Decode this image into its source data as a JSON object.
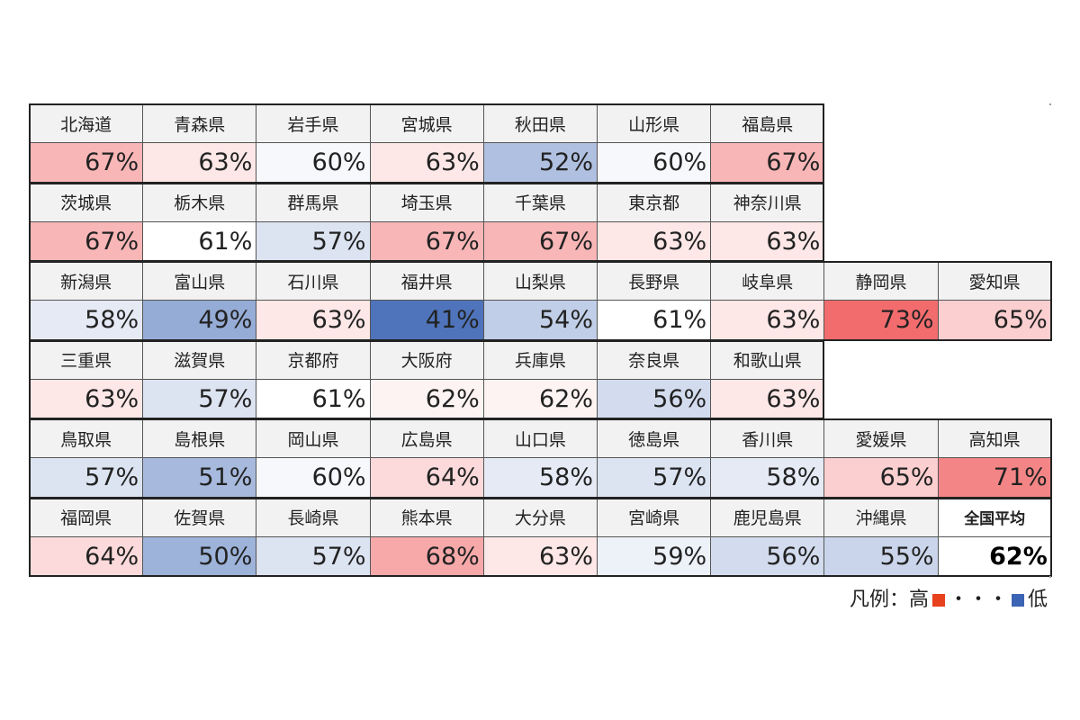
{
  "chart_data": {
    "type": "heatmap",
    "unit": "%",
    "rows": [
      [
        {
          "name": "北海道",
          "value": 67
        },
        {
          "name": "青森県",
          "value": 63
        },
        {
          "name": "岩手県",
          "value": 60
        },
        {
          "name": "宮城県",
          "value": 63
        },
        {
          "name": "秋田県",
          "value": 52
        },
        {
          "name": "山形県",
          "value": 60
        },
        {
          "name": "福島県",
          "value": 67
        }
      ],
      [
        {
          "name": "茨城県",
          "value": 67
        },
        {
          "name": "栃木県",
          "value": 61
        },
        {
          "name": "群馬県",
          "value": 57
        },
        {
          "name": "埼玉県",
          "value": 67
        },
        {
          "name": "千葉県",
          "value": 67
        },
        {
          "name": "東京都",
          "value": 63
        },
        {
          "name": "神奈川県",
          "value": 63
        }
      ],
      [
        {
          "name": "新潟県",
          "value": 58
        },
        {
          "name": "富山県",
          "value": 49
        },
        {
          "name": "石川県",
          "value": 63
        },
        {
          "name": "福井県",
          "value": 41
        },
        {
          "name": "山梨県",
          "value": 54
        },
        {
          "name": "長野県",
          "value": 61
        },
        {
          "name": "岐阜県",
          "value": 63
        },
        {
          "name": "静岡県",
          "value": 73
        },
        {
          "name": "愛知県",
          "value": 65
        }
      ],
      [
        {
          "name": "三重県",
          "value": 63
        },
        {
          "name": "滋賀県",
          "value": 57
        },
        {
          "name": "京都府",
          "value": 61
        },
        {
          "name": "大阪府",
          "value": 62
        },
        {
          "name": "兵庫県",
          "value": 62
        },
        {
          "name": "奈良県",
          "value": 56
        },
        {
          "name": "和歌山県",
          "value": 63
        }
      ],
      [
        {
          "name": "鳥取県",
          "value": 57
        },
        {
          "name": "島根県",
          "value": 51
        },
        {
          "name": "岡山県",
          "value": 60
        },
        {
          "name": "広島県",
          "value": 64
        },
        {
          "name": "山口県",
          "value": 58
        },
        {
          "name": "徳島県",
          "value": 57
        },
        {
          "name": "香川県",
          "value": 58
        },
        {
          "name": "愛媛県",
          "value": 65
        },
        {
          "name": "高知県",
          "value": 71
        }
      ],
      [
        {
          "name": "福岡県",
          "value": 64
        },
        {
          "name": "佐賀県",
          "value": 50
        },
        {
          "name": "長崎県",
          "value": 57
        },
        {
          "name": "熊本県",
          "value": 68
        },
        {
          "name": "大分県",
          "value": 63
        },
        {
          "name": "宮崎県",
          "value": 59
        },
        {
          "name": "鹿児島県",
          "value": 56
        },
        {
          "name": "沖縄県",
          "value": 55
        },
        {
          "name": "全国平均",
          "value": 62,
          "is_average": true
        }
      ]
    ],
    "color_scale": {
      "low": "#4f74bb",
      "mid": "#ffffff",
      "high": "#f26c6e",
      "min": 41,
      "mid_value": 61,
      "max": 73
    },
    "legend": {
      "label": "凡例：高",
      "dots": "・・・",
      "low_label": "低",
      "high_color": "#e8411e",
      "low_color": "#3c64b4",
      "position": "bottom-right"
    }
  }
}
